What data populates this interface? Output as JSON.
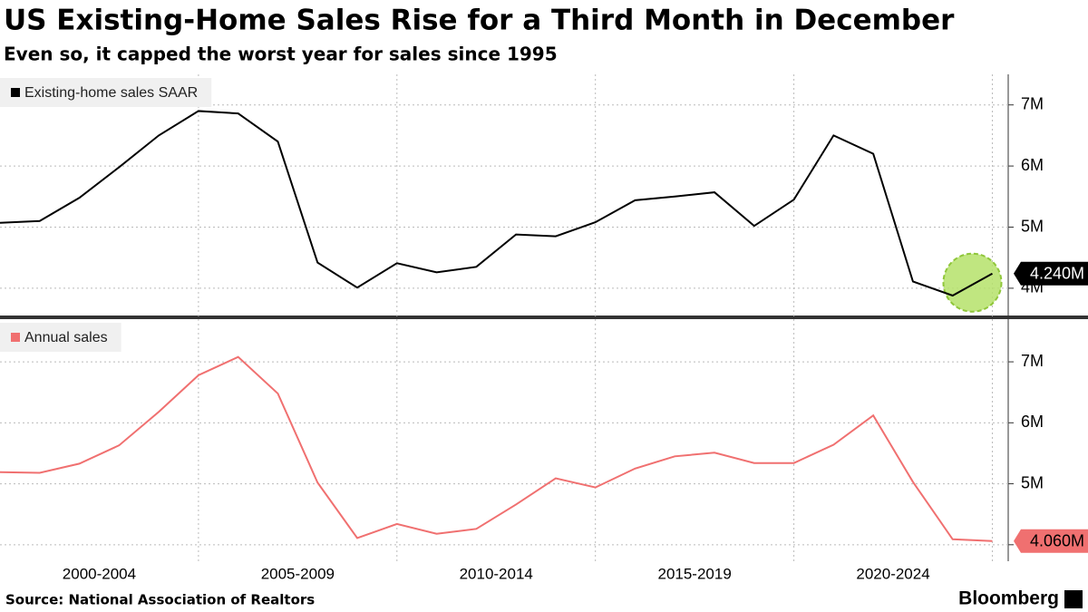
{
  "title": "US Existing-Home Sales Rise for a Third Month in December",
  "subtitle": "Even so, it capped the worst year for sales since 1995",
  "source": "Source: National Association of Realtors",
  "logo": "Bloomberg",
  "chart_data": [
    {
      "type": "line",
      "x": [
        2000,
        2001,
        2002,
        2003,
        2004,
        2005,
        2006,
        2007,
        2008,
        2009,
        2010,
        2011,
        2012,
        2013,
        2014,
        2015,
        2016,
        2017,
        2018,
        2019,
        2020,
        2021,
        2022,
        2023,
        2024,
        2025
      ],
      "series": [
        {
          "name": "Existing-home sales SAAR",
          "color": "#000000",
          "values": [
            5.07,
            5.1,
            5.48,
            5.98,
            6.5,
            6.9,
            6.86,
            6.4,
            4.42,
            4.01,
            4.41,
            4.26,
            4.35,
            4.88,
            4.85,
            5.08,
            5.44,
            5.5,
            5.57,
            5.02,
            5.45,
            6.5,
            6.2,
            4.11,
            3.88,
            4.24
          ],
          "value_labels": [
            null,
            null,
            null,
            null,
            null,
            null,
            null,
            null,
            null,
            null,
            null,
            null,
            null,
            null,
            null,
            null,
            null,
            null,
            null,
            null,
            null,
            null,
            null,
            null,
            null,
            "4.240M"
          ]
        }
      ],
      "xlim": [
        2000,
        2025.4
      ],
      "xticks": [],
      "ylim": [
        3.5,
        7.5
      ],
      "yticks": [
        {
          "value": 4,
          "label": "4M"
        },
        {
          "value": 5,
          "label": "5M"
        },
        {
          "value": 6,
          "label": "6M"
        },
        {
          "value": 7,
          "label": "7M"
        }
      ],
      "grid": true
    },
    {
      "type": "line",
      "x": [
        2000,
        2001,
        2002,
        2003,
        2004,
        2005,
        2006,
        2007,
        2008,
        2009,
        2010,
        2011,
        2012,
        2013,
        2014,
        2015,
        2016,
        2017,
        2018,
        2019,
        2020,
        2021,
        2022,
        2023,
        2024,
        2025
      ],
      "series": [
        {
          "name": "Annual sales",
          "color": "#f07070",
          "values": [
            5.19,
            5.18,
            5.33,
            5.63,
            6.18,
            6.78,
            7.08,
            6.48,
            5.02,
            4.11,
            4.34,
            4.18,
            4.26,
            4.66,
            5.09,
            4.94,
            5.25,
            5.45,
            5.51,
            5.34,
            5.34,
            5.64,
            6.12,
            5.03,
            4.09,
            4.06
          ],
          "value_labels": [
            null,
            null,
            null,
            null,
            null,
            null,
            null,
            null,
            null,
            null,
            null,
            null,
            null,
            null,
            null,
            null,
            null,
            null,
            null,
            null,
            null,
            null,
            null,
            null,
            null,
            "4.060M"
          ]
        }
      ],
      "xlim": [
        2000,
        2025.4
      ],
      "xticks": [
        {
          "value": 2002.5,
          "label": "2000-2004"
        },
        {
          "value": 2007.5,
          "label": "2005-2009"
        },
        {
          "value": 2012.5,
          "label": "2010-2014"
        },
        {
          "value": 2017.5,
          "label": "2015-2019"
        },
        {
          "value": 2022.5,
          "label": "2020-2024"
        }
      ],
      "ylim": [
        3.7,
        7.7
      ],
      "yticks": [
        {
          "value": 4,
          "label": "4M"
        },
        {
          "value": 5,
          "label": "5M"
        },
        {
          "value": 6,
          "label": "6M"
        },
        {
          "value": 7,
          "label": "7M"
        }
      ],
      "grid": true
    }
  ]
}
